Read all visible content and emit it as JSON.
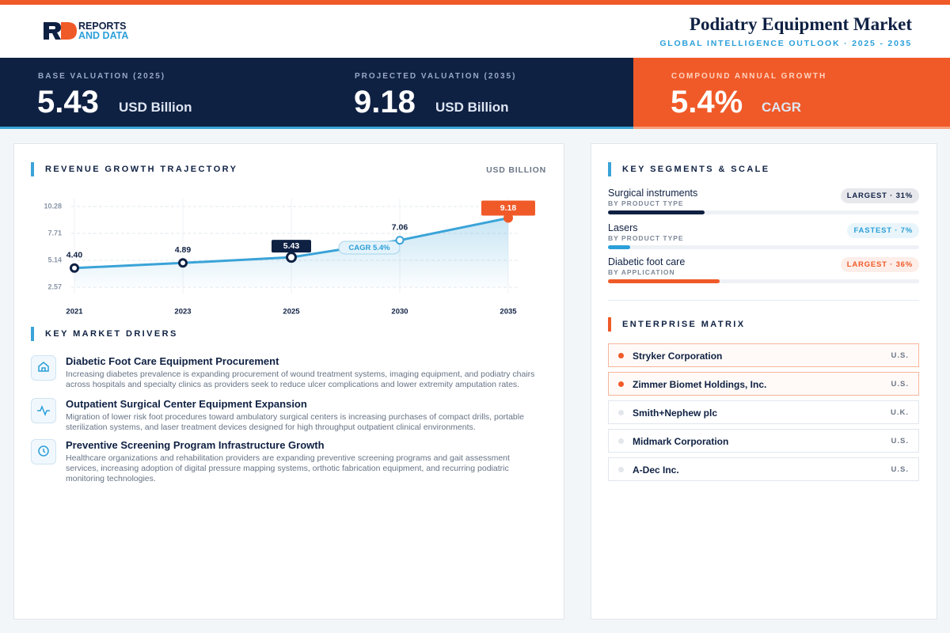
{
  "header": {
    "logo_top": "REPORTS",
    "logo_bottom": "AND DATA",
    "title": "Podiatry Equipment Market",
    "subtitle": "GLOBAL INTELLIGENCE OUTLOOK · 2025 - 2035"
  },
  "kpis": [
    {
      "label": "BASE VALUATION (2025)",
      "value": "5.43",
      "unit": "USD Billion"
    },
    {
      "label": "PROJECTED VALUATION (2035)",
      "value": "9.18",
      "unit": "USD Billion"
    },
    {
      "label": "COMPOUND ANNUAL GROWTH",
      "value": "5.4%",
      "unit": "CAGR"
    }
  ],
  "trend": {
    "type": "line",
    "title": "REVENUE GROWTH TRAJECTORY",
    "unit": "USD BILLION",
    "categories": [
      "2021",
      "2023",
      "2025",
      "2030",
      "2035"
    ],
    "values": [
      4.4,
      4.89,
      5.43,
      7.06,
      9.18
    ],
    "value_labels": [
      "4.40",
      "4.89",
      "5.43",
      "7.06",
      "9.18"
    ],
    "ylim": [
      2.57,
      10.28
    ],
    "yticks": [
      2.57,
      5.14,
      7.71,
      10.28
    ],
    "grid": true,
    "color": "#3aa3d8",
    "annotation": "CAGR 5.4%"
  },
  "drivers": {
    "title": "KEY MARKET DRIVERS",
    "items": [
      {
        "title": "Diabetic Foot Care Equipment Procurement",
        "text": "Increasing diabetes prevalence is expanding procurement of wound treatment systems, imaging equipment, and podiatry chairs across hospitals and specialty clinics as providers seek to reduce ulcer complications and lower extremity amputation rates."
      },
      {
        "title": "Outpatient Surgical Center Equipment Expansion",
        "text": "Migration of lower risk foot procedures toward ambulatory surgical centers is increasing purchases of compact drills, portable sterilization systems, and laser treatment devices designed for high throughput outpatient clinical environments."
      },
      {
        "title": "Preventive Screening Program Infrastructure Growth",
        "text": "Healthcare organizations and rehabilitation providers are expanding preventive screening programs and gait assessment services, increasing adoption of digital pressure mapping systems, orthotic fabrication equipment, and recurring podiatric monitoring technologies."
      }
    ]
  },
  "segments": {
    "title": "KEY SEGMENTS & SCALE",
    "items": [
      {
        "name": "Surgical instruments",
        "group": "BY PRODUCT TYPE",
        "badge": "LARGEST · 31%",
        "value": 31,
        "color": "#0f2143"
      },
      {
        "name": "Lasers",
        "group": "BY PRODUCT TYPE",
        "badge": "FASTEST · 7%",
        "value": 7,
        "color": "#2b9fd9"
      },
      {
        "name": "Diabetic foot care",
        "group": "BY APPLICATION",
        "badge": "LARGEST · 36%",
        "value": 36,
        "color": "#f05a28"
      }
    ]
  },
  "enterprise": {
    "title": "ENTERPRISE MATRIX",
    "items": [
      {
        "name": "Stryker Corporation",
        "country": "U.S.",
        "highlight": true
      },
      {
        "name": "Zimmer Biomet Holdings, Inc.",
        "country": "U.S.",
        "highlight": true
      },
      {
        "name": "Smith+Nephew plc",
        "country": "U.K.",
        "highlight": false
      },
      {
        "name": "Midmark Corporation",
        "country": "U.S.",
        "highlight": false
      },
      {
        "name": "A-Dec Inc.",
        "country": "U.S.",
        "highlight": false
      }
    ]
  }
}
